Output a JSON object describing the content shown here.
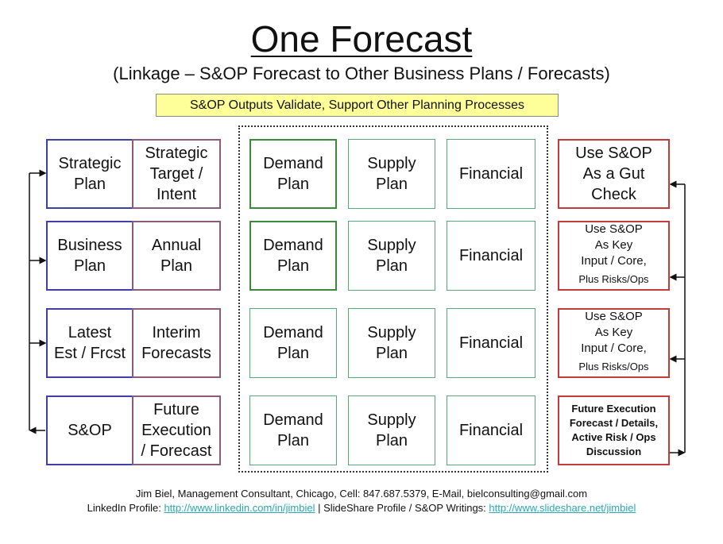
{
  "title": "One Forecast",
  "subtitle": "(Linkage – S&OP Forecast to Other Business Plans / Forecasts)",
  "banner": "S&OP Outputs Validate, Support Other Planning Processes",
  "rows": [
    {
      "plan": [
        "Strategic",
        "Plan"
      ],
      "type": [
        "Strategic",
        "Target /",
        "Intent"
      ],
      "demand": [
        "Demand",
        "Plan"
      ],
      "supply": [
        "Supply",
        "Plan"
      ],
      "financial": "Financial",
      "use": [
        "Use S&OP",
        "As a Gut",
        "Check"
      ]
    },
    {
      "plan": [
        "Business",
        "Plan"
      ],
      "type": [
        "Annual",
        "Plan"
      ],
      "demand": [
        "Demand",
        "Plan"
      ],
      "supply": [
        "Supply",
        "Plan"
      ],
      "financial": "Financial",
      "use": [
        "Use S&OP",
        "As Key",
        "Input / Core,",
        "Plus Risks/Ops"
      ]
    },
    {
      "plan": [
        "Latest",
        "Est / Frcst"
      ],
      "type": [
        "Interim",
        "Forecasts"
      ],
      "demand": [
        "Demand",
        "Plan"
      ],
      "supply": [
        "Supply",
        "Plan"
      ],
      "financial": "Financial",
      "use": [
        "Use S&OP",
        "As Key",
        "Input / Core,",
        "Plus Risks/Ops"
      ]
    },
    {
      "plan": [
        "S&OP"
      ],
      "type": [
        "Future",
        "Execution",
        "/ Forecast"
      ],
      "demand": [
        "Demand",
        "Plan"
      ],
      "supply": [
        "Supply",
        "Plan"
      ],
      "financial": "Financial",
      "use": [
        "Future Execution",
        "Forecast / Details,",
        "Active Risk / Ops",
        "Discussion"
      ]
    }
  ],
  "footer": {
    "line1": "Jim Biel, Management Consultant, Chicago, Cell: 847.687.5379, E-Mail, bielconsulting@gmail.com",
    "linkedin_label": "LinkedIn Profile: ",
    "linkedin_url": "http://www.linkedin.com/in/jimbiel",
    "separator": " | SlideShare Profile / S&OP Writings: ",
    "slideshare_url": "http://www.slideshare.net/jimbiel"
  },
  "colors": {
    "plan_border": "#3f3fa6",
    "type_border": "#8c5a7c",
    "middle_border": "#5aa87a",
    "use_border": "#c23a3a",
    "banner_fill": "#ffff99",
    "link": "#2aa8b0"
  }
}
